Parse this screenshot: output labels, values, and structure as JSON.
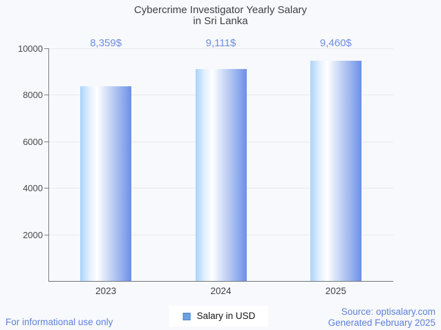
{
  "title": {
    "line1": "Cybercrime Investigator Yearly Salary",
    "line2": "in Sri Lanka"
  },
  "chart_data": {
    "type": "bar",
    "title": "Cybercrime Investigator Yearly Salary in Sri Lanka",
    "categories": [
      "2023",
      "2024",
      "2025"
    ],
    "values": [
      8359,
      9111,
      9460
    ],
    "value_labels": [
      "8,359$",
      "9,111$",
      "9,460$"
    ],
    "series": [
      {
        "name": "Salary in USD",
        "values": [
          8359,
          9111,
          9460
        ]
      }
    ],
    "xlabel": "",
    "ylabel": "",
    "ylim": [
      0,
      10000
    ],
    "yticks": [
      2000,
      4000,
      6000,
      8000,
      10000
    ],
    "grid": true,
    "legend_position": "bottom",
    "bar_gradient": [
      "#a9d3fb",
      "#ffffff",
      "#6b90e7"
    ],
    "value_label_color": "#6b8de2"
  },
  "legend": {
    "label": "Salary in USD",
    "marker_color": "#6ba1e3"
  },
  "footer": {
    "left": "For informational use only",
    "source": "Source: optisalary.com",
    "generated": "Generated February 2025"
  },
  "colors": {
    "background": "#f8f9fc",
    "title_text": "#3d4043",
    "axis_line": "#7a7d82",
    "gridline": "#e7e9ed",
    "tick_label": "#454749",
    "footer_text": "#5c80da"
  }
}
